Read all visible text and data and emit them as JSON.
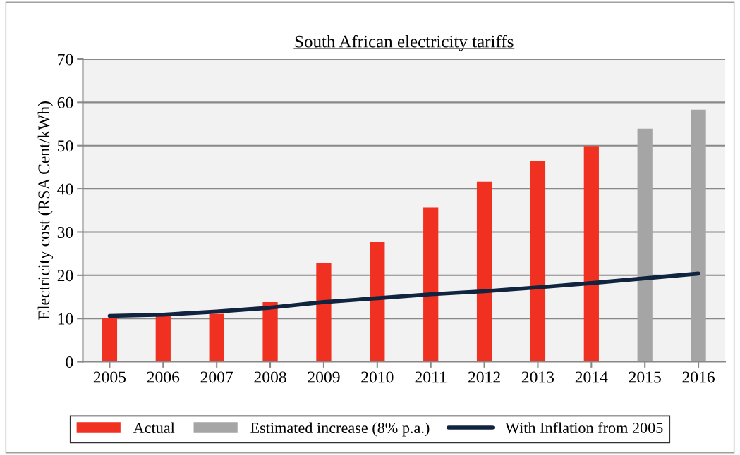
{
  "chart_data": {
    "type": "bar",
    "title": "South African electricity tariffs",
    "ylabel": "Electricity cost (RSA Cent/kWh)",
    "categories": [
      "2005",
      "2006",
      "2007",
      "2008",
      "2009",
      "2010",
      "2011",
      "2012",
      "2013",
      "2014",
      "2015",
      "2016"
    ],
    "series": [
      {
        "name": "Actual",
        "color": "#f03020",
        "values": [
          10.1,
          10.6,
          11.1,
          13.8,
          22.8,
          27.8,
          35.7,
          41.7,
          46.4,
          49.9,
          null,
          null
        ]
      },
      {
        "name": "Estimated increase (8% p.a.)",
        "color": "#a5a5a5",
        "values": [
          null,
          null,
          null,
          null,
          null,
          null,
          null,
          null,
          null,
          null,
          53.9,
          58.3
        ]
      },
      {
        "name": "With Inflation from 2005",
        "type": "line",
        "color": "#10243f",
        "values": [
          10.6,
          10.9,
          11.6,
          12.5,
          13.8,
          14.7,
          15.6,
          16.3,
          17.2,
          18.2,
          19.3,
          20.4
        ]
      }
    ],
    "ylim": [
      0,
      70
    ],
    "yticks": [
      0,
      10,
      20,
      30,
      40,
      50,
      60,
      70
    ],
    "grid": "y",
    "legend": "bottom"
  }
}
